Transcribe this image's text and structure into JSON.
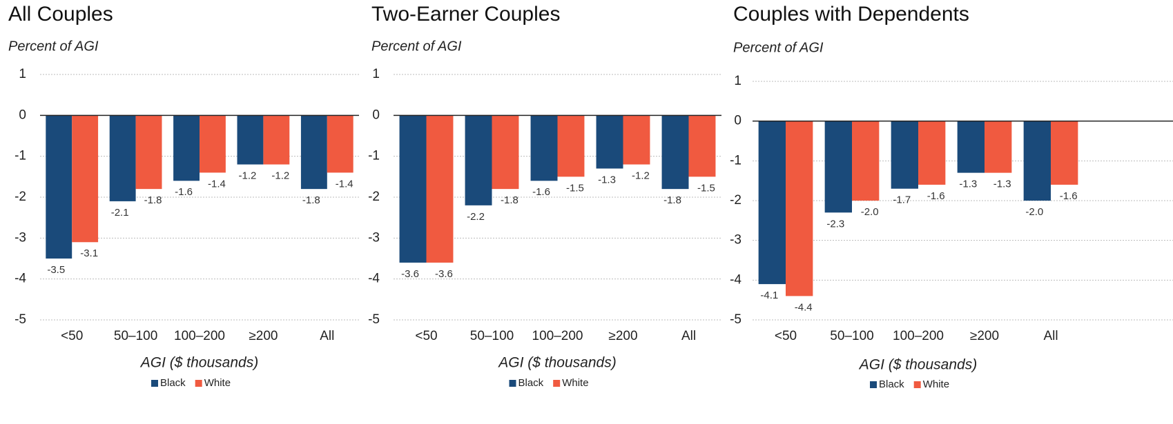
{
  "chart_data": [
    {
      "type": "bar",
      "title": "All Couples",
      "y_label": "Percent of AGI",
      "x_label": "AGI ($ thousands)",
      "categories": [
        "<50",
        "50–100",
        "100–200",
        "≥200",
        "All"
      ],
      "series": [
        {
          "name": "Black",
          "color": "#1a4a7a",
          "values": [
            -3.5,
            -2.1,
            -1.6,
            -1.2,
            -1.8
          ]
        },
        {
          "name": "White",
          "color": "#f05a40",
          "values": [
            -3.1,
            -1.8,
            -1.4,
            -1.2,
            -1.4
          ]
        }
      ],
      "ylim": [
        -5,
        1
      ],
      "yticks": [
        1,
        0,
        -1,
        -2,
        -3,
        -4,
        -5
      ],
      "grid": true
    },
    {
      "type": "bar",
      "title": "Two-Earner Couples",
      "y_label": "Percent of AGI",
      "x_label": "AGI ($ thousands)",
      "categories": [
        "<50",
        "50–100",
        "100–200",
        "≥200",
        "All"
      ],
      "series": [
        {
          "name": "Black",
          "color": "#1a4a7a",
          "values": [
            -3.6,
            -2.2,
            -1.6,
            -1.3,
            -1.8
          ]
        },
        {
          "name": "White",
          "color": "#f05a40",
          "values": [
            -3.6,
            -1.8,
            -1.5,
            -1.2,
            -1.5
          ]
        }
      ],
      "ylim": [
        -5,
        1
      ],
      "yticks": [
        1,
        0,
        -1,
        -2,
        -3,
        -4,
        -5
      ],
      "grid": true
    },
    {
      "type": "bar",
      "title": "Couples with Dependents",
      "y_label": "Percent of AGI",
      "x_label": "AGI ($ thousands)",
      "categories": [
        "<50",
        "50–100",
        "100–200",
        "≥200",
        "All"
      ],
      "series": [
        {
          "name": "Black",
          "color": "#1a4a7a",
          "values": [
            -4.1,
            -2.3,
            -1.7,
            -1.3,
            -2.0
          ],
          "value_labels": [
            "-4.1",
            "-2.3",
            "-1.7",
            "-1.3",
            "-2.0"
          ]
        },
        {
          "name": "White",
          "color": "#f05a40",
          "values": [
            -4.4,
            -2.0,
            -1.6,
            -1.3,
            -1.6
          ],
          "value_labels": [
            "-4.4",
            "-2.0",
            "-1.6",
            "-1.3",
            "-1.6"
          ]
        }
      ],
      "ylim": [
        -5,
        1
      ],
      "yticks": [
        1,
        0,
        -1,
        -2,
        -3,
        -4,
        -5
      ],
      "grid": true
    }
  ]
}
